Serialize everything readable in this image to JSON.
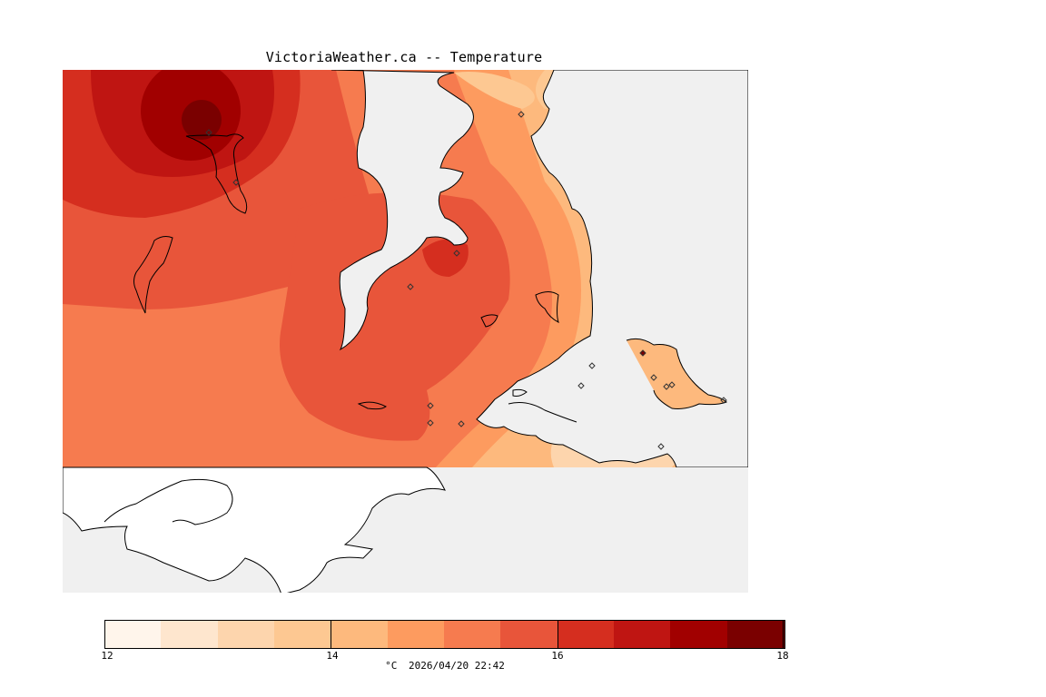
{
  "title": "VictoriaWeather.ca -- Temperature",
  "colorbar": {
    "min": 12,
    "max": 18,
    "tick_labels": [
      "12",
      "14",
      "16",
      "18"
    ],
    "colors": [
      "#fff5eb",
      "#fee6ce",
      "#fdd5ad",
      "#fdc892",
      "#fdb97d",
      "#fd9b5f",
      "#f67b4f",
      "#e8553a",
      "#d52e1f",
      "#bf1512",
      "#a10000",
      "#7a0000"
    ]
  },
  "unit": "°C",
  "timestamp": "2026/04/20 22:42",
  "map_colors": {
    "no_data": "#f0f0f0",
    "land_outside": "#ffffff",
    "coastline": "#000000",
    "station_marker": "#333333"
  },
  "stations_count": 16
}
